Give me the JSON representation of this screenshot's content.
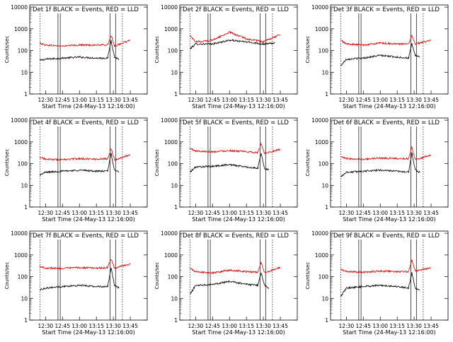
{
  "chart_data": [
    {
      "type": "line",
      "title": "Det 1f BLACK = Events, RED = LLD",
      "xlabel": "Start Time (24-May-13 12:16:00)",
      "ylabel": "Counts/sec",
      "xticks": [
        "12:30",
        "12:45",
        "13:00",
        "13:15",
        "13:30",
        "13:45"
      ],
      "yticks": [
        "1",
        "10",
        "100",
        "1000",
        "10000"
      ],
      "ylim": [
        1,
        10000
      ],
      "yscale": "log",
      "series": [
        {
          "color": "#000000",
          "values": [
            {
              "t": "12:25",
              "v": 35
            },
            {
              "t": "12:30",
              "v": 40
            },
            {
              "t": "12:45",
              "v": 45
            },
            {
              "t": "13:00",
              "v": 50
            },
            {
              "t": "13:15",
              "v": 45
            },
            {
              "t": "13:25",
              "v": 45
            },
            {
              "t": "13:28",
              "v": 300
            },
            {
              "t": "13:31",
              "v": 50
            },
            {
              "t": "13:35",
              "v": 40
            }
          ]
        },
        {
          "color": "#dd0000",
          "values": [
            {
              "t": "12:25",
              "v": 220
            },
            {
              "t": "12:30",
              "v": 180
            },
            {
              "t": "12:45",
              "v": 160
            },
            {
              "t": "13:00",
              "v": 180
            },
            {
              "t": "13:15",
              "v": 180
            },
            {
              "t": "13:25",
              "v": 180
            },
            {
              "t": "13:28",
              "v": 500
            },
            {
              "t": "13:31",
              "v": 160
            },
            {
              "t": "13:45",
              "v": 300
            }
          ]
        }
      ]
    },
    {
      "type": "line",
      "title": "Det 2f BLACK = Events, RED = LLD",
      "xlabel": "Start Time (24-May-13 12:16:00)",
      "ylabel": "Counts/sec",
      "xticks": [
        "12:30",
        "12:45",
        "13:00",
        "13:15",
        "13:30",
        "13:45"
      ],
      "yticks": [
        "1",
        "10",
        "100",
        "1000",
        "10000"
      ],
      "ylim": [
        1,
        10000
      ],
      "yscale": "log",
      "series": [
        {
          "color": "#000000",
          "values": [
            {
              "t": "12:25",
              "v": 120
            },
            {
              "t": "12:30",
              "v": 200
            },
            {
              "t": "12:45",
              "v": 200
            },
            {
              "t": "13:00",
              "v": 300
            },
            {
              "t": "13:15",
              "v": 250
            },
            {
              "t": "13:30",
              "v": 200
            },
            {
              "t": "13:40",
              "v": 220
            }
          ]
        },
        {
          "color": "#dd0000",
          "values": [
            {
              "t": "12:25",
              "v": 500
            },
            {
              "t": "12:30",
              "v": 250
            },
            {
              "t": "12:45",
              "v": 300
            },
            {
              "t": "13:00",
              "v": 700
            },
            {
              "t": "13:15",
              "v": 350
            },
            {
              "t": "13:30",
              "v": 250
            },
            {
              "t": "13:45",
              "v": 550
            }
          ]
        }
      ]
    },
    {
      "type": "line",
      "title": "Det 3f BLACK = Events, RED = LLD",
      "xlabel": "Start Time (24-May-13 12:16:00)",
      "ylabel": "Counts/sec",
      "xticks": [
        "12:30",
        "12:45",
        "13:00",
        "13:15",
        "13:30",
        "13:45"
      ],
      "yticks": [
        "1",
        "10",
        "100",
        "1000",
        "10000"
      ],
      "ylim": [
        1,
        10000
      ],
      "yscale": "log",
      "series": [
        {
          "color": "#000000",
          "values": [
            {
              "t": "12:25",
              "v": 20
            },
            {
              "t": "12:30",
              "v": 40
            },
            {
              "t": "12:45",
              "v": 45
            },
            {
              "t": "13:00",
              "v": 60
            },
            {
              "t": "13:15",
              "v": 50
            },
            {
              "t": "13:25",
              "v": 45
            },
            {
              "t": "13:28",
              "v": 200
            },
            {
              "t": "13:31",
              "v": 60
            },
            {
              "t": "13:35",
              "v": 50
            }
          ]
        },
        {
          "color": "#dd0000",
          "values": [
            {
              "t": "12:25",
              "v": 300
            },
            {
              "t": "12:30",
              "v": 200
            },
            {
              "t": "12:45",
              "v": 180
            },
            {
              "t": "13:00",
              "v": 220
            },
            {
              "t": "13:15",
              "v": 200
            },
            {
              "t": "13:25",
              "v": 200
            },
            {
              "t": "13:28",
              "v": 500
            },
            {
              "t": "13:31",
              "v": 200
            },
            {
              "t": "13:45",
              "v": 300
            }
          ]
        }
      ]
    },
    {
      "type": "line",
      "title": "Det 4f BLACK = Events, RED = LLD",
      "xlabel": "Start Time (24-May-13 12:16:00)",
      "ylabel": "Counts/sec",
      "xticks": [
        "12:30",
        "12:45",
        "13:00",
        "13:15",
        "13:30",
        "13:45"
      ],
      "yticks": [
        "1",
        "10",
        "100",
        "1000",
        "10000"
      ],
      "ylim": [
        1,
        10000
      ],
      "yscale": "log",
      "series": [
        {
          "color": "#000000",
          "values": [
            {
              "t": "12:25",
              "v": 30
            },
            {
              "t": "12:30",
              "v": 40
            },
            {
              "t": "12:45",
              "v": 45
            },
            {
              "t": "13:00",
              "v": 50
            },
            {
              "t": "13:15",
              "v": 45
            },
            {
              "t": "13:25",
              "v": 45
            },
            {
              "t": "13:28",
              "v": 300
            },
            {
              "t": "13:31",
              "v": 50
            },
            {
              "t": "13:35",
              "v": 40
            }
          ]
        },
        {
          "color": "#dd0000",
          "values": [
            {
              "t": "12:25",
              "v": 200
            },
            {
              "t": "12:30",
              "v": 160
            },
            {
              "t": "12:45",
              "v": 150
            },
            {
              "t": "13:00",
              "v": 170
            },
            {
              "t": "13:15",
              "v": 160
            },
            {
              "t": "13:25",
              "v": 170
            },
            {
              "t": "13:28",
              "v": 500
            },
            {
              "t": "13:31",
              "v": 150
            },
            {
              "t": "13:45",
              "v": 250
            }
          ]
        }
      ]
    },
    {
      "type": "line",
      "title": "Det 5f BLACK = Events, RED = LLD",
      "xlabel": "Start Time (24-May-13 12:16:00)",
      "ylabel": "Counts/sec",
      "xticks": [
        "12:30",
        "12:45",
        "13:00",
        "13:15",
        "13:30",
        "13:45"
      ],
      "yticks": [
        "1",
        "10",
        "100",
        "1000",
        "10000"
      ],
      "ylim": [
        1,
        10000
      ],
      "yscale": "log",
      "series": [
        {
          "color": "#000000",
          "values": [
            {
              "t": "12:25",
              "v": 40
            },
            {
              "t": "12:30",
              "v": 70
            },
            {
              "t": "12:45",
              "v": 75
            },
            {
              "t": "13:00",
              "v": 90
            },
            {
              "t": "13:15",
              "v": 70
            },
            {
              "t": "13:25",
              "v": 60
            },
            {
              "t": "13:28",
              "v": 300
            },
            {
              "t": "13:31",
              "v": 60
            },
            {
              "t": "13:35",
              "v": 50
            }
          ]
        },
        {
          "color": "#dd0000",
          "values": [
            {
              "t": "12:25",
              "v": 500
            },
            {
              "t": "12:30",
              "v": 380
            },
            {
              "t": "12:45",
              "v": 350
            },
            {
              "t": "13:00",
              "v": 400
            },
            {
              "t": "13:15",
              "v": 350
            },
            {
              "t": "13:25",
              "v": 320
            },
            {
              "t": "13:28",
              "v": 800
            },
            {
              "t": "13:31",
              "v": 300
            },
            {
              "t": "13:45",
              "v": 450
            }
          ]
        }
      ]
    },
    {
      "type": "line",
      "title": "Det 6f BLACK = Events, RED = LLD",
      "xlabel": "Start Time (24-May-13 12:16:00)",
      "ylabel": "Counts/sec",
      "xticks": [
        "12:30",
        "12:45",
        "13:00",
        "13:15",
        "13:30",
        "13:45"
      ],
      "yticks": [
        "1",
        "10",
        "100",
        "1000",
        "10000"
      ],
      "ylim": [
        1,
        10000
      ],
      "yscale": "log",
      "series": [
        {
          "color": "#000000",
          "values": [
            {
              "t": "12:25",
              "v": 25
            },
            {
              "t": "12:30",
              "v": 40
            },
            {
              "t": "12:45",
              "v": 45
            },
            {
              "t": "13:00",
              "v": 50
            },
            {
              "t": "13:15",
              "v": 45
            },
            {
              "t": "13:25",
              "v": 40
            },
            {
              "t": "13:28",
              "v": 300
            },
            {
              "t": "13:31",
              "v": 50
            },
            {
              "t": "13:35",
              "v": 40
            }
          ]
        },
        {
          "color": "#dd0000",
          "values": [
            {
              "t": "12:25",
              "v": 200
            },
            {
              "t": "12:30",
              "v": 170
            },
            {
              "t": "12:45",
              "v": 160
            },
            {
              "t": "13:00",
              "v": 180
            },
            {
              "t": "13:15",
              "v": 170
            },
            {
              "t": "13:25",
              "v": 170
            },
            {
              "t": "13:28",
              "v": 600
            },
            {
              "t": "13:31",
              "v": 150
            },
            {
              "t": "13:45",
              "v": 250
            }
          ]
        }
      ]
    },
    {
      "type": "line",
      "title": "Det 7f BLACK = Events, RED = LLD",
      "xlabel": "Start Time (24-May-13 12:16:00)",
      "ylabel": "Counts/sec",
      "xticks": [
        "12:30",
        "12:45",
        "13:00",
        "13:15",
        "13:30",
        "13:45"
      ],
      "yticks": [
        "1",
        "10",
        "100",
        "1000",
        "10000"
      ],
      "ylim": [
        1,
        10000
      ],
      "yscale": "log",
      "series": [
        {
          "color": "#000000",
          "values": [
            {
              "t": "12:25",
              "v": 25
            },
            {
              "t": "12:30",
              "v": 30
            },
            {
              "t": "12:45",
              "v": 35
            },
            {
              "t": "13:00",
              "v": 40
            },
            {
              "t": "13:15",
              "v": 35
            },
            {
              "t": "13:25",
              "v": 35
            },
            {
              "t": "13:28",
              "v": 250
            },
            {
              "t": "13:31",
              "v": 40
            },
            {
              "t": "13:35",
              "v": 30
            }
          ]
        },
        {
          "color": "#dd0000",
          "values": [
            {
              "t": "12:25",
              "v": 300
            },
            {
              "t": "12:30",
              "v": 250
            },
            {
              "t": "12:45",
              "v": 240
            },
            {
              "t": "13:00",
              "v": 260
            },
            {
              "t": "13:15",
              "v": 250
            },
            {
              "t": "13:25",
              "v": 260
            },
            {
              "t": "13:28",
              "v": 650
            },
            {
              "t": "13:31",
              "v": 250
            },
            {
              "t": "13:45",
              "v": 380
            }
          ]
        }
      ]
    },
    {
      "type": "line",
      "title": "Det 8f BLACK = Events, RED = LLD",
      "xlabel": "Start Time (24-May-13 12:16:00)",
      "ylabel": "Counts/sec",
      "xticks": [
        "12:30",
        "12:45",
        "13:00",
        "13:15",
        "13:30",
        "13:45"
      ],
      "yticks": [
        "1",
        "10",
        "100",
        "1000",
        "10000"
      ],
      "ylim": [
        1,
        10000
      ],
      "yscale": "log",
      "series": [
        {
          "color": "#000000",
          "values": [
            {
              "t": "12:25",
              "v": 15
            },
            {
              "t": "12:30",
              "v": 40
            },
            {
              "t": "12:45",
              "v": 45
            },
            {
              "t": "13:00",
              "v": 60
            },
            {
              "t": "13:15",
              "v": 45
            },
            {
              "t": "13:25",
              "v": 40
            },
            {
              "t": "13:28",
              "v": 150
            },
            {
              "t": "13:31",
              "v": 40
            },
            {
              "t": "13:35",
              "v": 30
            }
          ]
        },
        {
          "color": "#dd0000",
          "values": [
            {
              "t": "12:25",
              "v": 250
            },
            {
              "t": "12:30",
              "v": 170
            },
            {
              "t": "12:45",
              "v": 150
            },
            {
              "t": "13:00",
              "v": 200
            },
            {
              "t": "13:15",
              "v": 170
            },
            {
              "t": "13:25",
              "v": 160
            },
            {
              "t": "13:28",
              "v": 450
            },
            {
              "t": "13:31",
              "v": 150
            },
            {
              "t": "13:45",
              "v": 260
            }
          ]
        }
      ]
    },
    {
      "type": "line",
      "title": "Det 9f BLACK = Events, RED = LLD",
      "xlabel": "Start Time (24-May-13 12:16:00)",
      "ylabel": "Counts/sec",
      "xticks": [
        "12:30",
        "12:45",
        "13:00",
        "13:15",
        "13:30",
        "13:45"
      ],
      "yticks": [
        "1",
        "10",
        "100",
        "1000",
        "10000"
      ],
      "ylim": [
        1,
        10000
      ],
      "yscale": "log",
      "series": [
        {
          "color": "#000000",
          "values": [
            {
              "t": "12:25",
              "v": 12
            },
            {
              "t": "12:30",
              "v": 30
            },
            {
              "t": "12:45",
              "v": 35
            },
            {
              "t": "13:00",
              "v": 40
            },
            {
              "t": "13:15",
              "v": 35
            },
            {
              "t": "13:25",
              "v": 30
            },
            {
              "t": "13:28",
              "v": 150
            },
            {
              "t": "13:31",
              "v": 30
            },
            {
              "t": "13:35",
              "v": 25
            }
          ]
        },
        {
          "color": "#dd0000",
          "values": [
            {
              "t": "12:25",
              "v": 220
            },
            {
              "t": "12:30",
              "v": 170
            },
            {
              "t": "12:45",
              "v": 160
            },
            {
              "t": "13:00",
              "v": 180
            },
            {
              "t": "13:15",
              "v": 170
            },
            {
              "t": "13:25",
              "v": 170
            },
            {
              "t": "13:28",
              "v": 600
            },
            {
              "t": "13:31",
              "v": 180
            },
            {
              "t": "13:45",
              "v": 250
            }
          ]
        }
      ]
    }
  ]
}
